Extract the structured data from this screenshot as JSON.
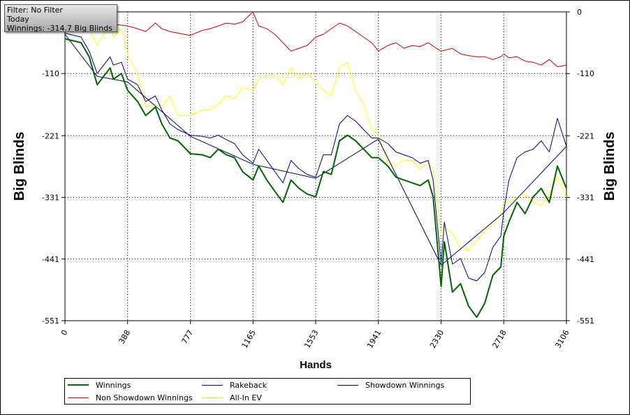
{
  "filter_box": {
    "filter": "Filter: No Filter",
    "period": "Today",
    "winnings": "Winnings: -314.7 Big Blinds"
  },
  "chart_data": {
    "type": "line",
    "xlabel": "Hands",
    "ylabel": "Big Blinds",
    "ylabel_right": "Big Blinds",
    "xlim": [
      0,
      3106
    ],
    "ylim": [
      -551,
      0
    ],
    "x_ticks": [
      "0",
      "388",
      "777",
      "1165",
      "1553",
      "1941",
      "2330",
      "2718",
      "3106"
    ],
    "y_ticks": [
      "0",
      "-110",
      "-221",
      "-331",
      "-441",
      "-551"
    ],
    "grid": true,
    "legend_position": "bottom",
    "series": [
      {
        "name": "Winnings",
        "color": "#006400",
        "width": 2,
        "x": [
          0,
          100,
          150,
          200,
          280,
          300,
          350,
          388,
          450,
          500,
          560,
          600,
          650,
          700,
          777,
          850,
          900,
          950,
          1000,
          1050,
          1100,
          1165,
          1200,
          1250,
          1300,
          1350,
          1400,
          1450,
          1500,
          1553,
          1600,
          1650,
          1700,
          1750,
          1800,
          1850,
          1900,
          1941,
          2000,
          2050,
          2100,
          2150,
          2200,
          2250,
          2280,
          2330,
          2350,
          2400,
          2450,
          2500,
          2550,
          2600,
          2650,
          2700,
          2718,
          2750,
          2800,
          2850,
          2900,
          2950,
          3000,
          3050,
          3106
        ],
        "y": [
          -48,
          -55,
          -80,
          -130,
          -100,
          -120,
          -110,
          -140,
          -160,
          -185,
          -170,
          -200,
          -225,
          -230,
          -253,
          -255,
          -260,
          -245,
          -255,
          -260,
          -285,
          -300,
          -275,
          -300,
          -320,
          -340,
          -300,
          -315,
          -325,
          -330,
          -285,
          -290,
          -230,
          -220,
          -230,
          -245,
          -260,
          -260,
          -275,
          -295,
          -300,
          -305,
          -310,
          -300,
          -330,
          -490,
          -410,
          -500,
          -485,
          -525,
          -545,
          -520,
          -470,
          -455,
          -400,
          -375,
          -340,
          -360,
          -330,
          -315,
          -340,
          -275,
          -315
        ]
      },
      {
        "name": "Rakeback",
        "color": "#00008b",
        "width": 1,
        "x": [
          0,
          100,
          150,
          200,
          280,
          300,
          350,
          388,
          450,
          500,
          560,
          600,
          650,
          700,
          777,
          850,
          900,
          950,
          1000,
          1050,
          1100,
          1165,
          1200,
          1250,
          1300,
          1350,
          1400,
          1450,
          1500,
          1553,
          1600,
          1650,
          1700,
          1750,
          1800,
          1850,
          1900,
          1941,
          2000,
          2050,
          2100,
          2150,
          2200,
          2250,
          2280,
          2330,
          2350,
          2400,
          2450,
          2500,
          2550,
          2600,
          2650,
          2700,
          2718,
          2750,
          2800,
          2850,
          2900,
          2950,
          3000,
          3050,
          3106
        ],
        "y": [
          -38,
          -45,
          -70,
          -110,
          -80,
          -95,
          -90,
          -120,
          -130,
          -160,
          -150,
          -175,
          -200,
          -210,
          -220,
          -222,
          -225,
          -220,
          -228,
          -235,
          -255,
          -270,
          -245,
          -265,
          -285,
          -305,
          -265,
          -280,
          -290,
          -295,
          -255,
          -255,
          -200,
          -185,
          -195,
          -210,
          -225,
          -225,
          -235,
          -250,
          -255,
          -260,
          -270,
          -265,
          -300,
          -450,
          -375,
          -450,
          -440,
          -475,
          -480,
          -465,
          -420,
          -400,
          -355,
          -300,
          -260,
          -250,
          -245,
          -230,
          -250,
          -190,
          -240
        ]
      },
      {
        "name": "Showdown Winnings",
        "color": "#000060",
        "width": 1,
        "x": [
          0,
          200,
          388,
          777,
          1165,
          1553,
          1941,
          2330,
          2718,
          3106
        ],
        "y": [
          -40,
          -115,
          -125,
          -222,
          -272,
          -297,
          -227,
          -452,
          -358,
          -240
        ]
      },
      {
        "name": "Non Showdown Winnings",
        "color": "#cc0000",
        "width": 1,
        "x": [
          0,
          100,
          200,
          300,
          388,
          450,
          500,
          560,
          600,
          650,
          700,
          777,
          850,
          900,
          950,
          1000,
          1050,
          1100,
          1165,
          1200,
          1250,
          1300,
          1350,
          1400,
          1450,
          1500,
          1553,
          1600,
          1650,
          1700,
          1750,
          1800,
          1850,
          1900,
          1941,
          2000,
          2050,
          2100,
          2150,
          2200,
          2250,
          2300,
          2330,
          2400,
          2450,
          2500,
          2550,
          2600,
          2650,
          2700,
          2718,
          2750,
          2800,
          2850,
          2900,
          2950,
          3000,
          3050,
          3106
        ],
        "y": [
          -12,
          -10,
          -18,
          -22,
          -25,
          -30,
          -35,
          -20,
          -30,
          -35,
          -38,
          -42,
          -33,
          -30,
          -25,
          -20,
          -22,
          -18,
          0,
          -25,
          -30,
          -40,
          -55,
          -70,
          -65,
          -60,
          -45,
          -40,
          -30,
          -20,
          -25,
          -35,
          -45,
          -55,
          -70,
          -60,
          -55,
          -65,
          -60,
          -62,
          -55,
          -65,
          -70,
          -65,
          -75,
          -78,
          -80,
          -80,
          -85,
          -80,
          -75,
          -82,
          -80,
          -88,
          -90,
          -95,
          -85,
          -98,
          -95
        ]
      },
      {
        "name": "All-In EV",
        "color": "#ffff00",
        "width": 1,
        "x": [
          0,
          100,
          150,
          200,
          280,
          300,
          350,
          388,
          450,
          500,
          560,
          600,
          650,
          700,
          777,
          850,
          900,
          950,
          1000,
          1050,
          1100,
          1165,
          1200,
          1250,
          1300,
          1350,
          1400,
          1450,
          1500,
          1553,
          1600,
          1650,
          1700,
          1750,
          1800,
          1850,
          1900,
          1941,
          2000,
          2050,
          2100,
          2150,
          2200,
          2250,
          2280,
          2330,
          2350,
          2400,
          2450,
          2500,
          2550,
          2600,
          2650,
          2700,
          2718,
          2750,
          2800,
          2850,
          2900,
          2950,
          3000,
          3050,
          3106
        ],
        "y": [
          -20,
          -15,
          -30,
          -60,
          -20,
          -45,
          -30,
          -75,
          -110,
          -170,
          -165,
          -170,
          -150,
          -185,
          -185,
          -175,
          -175,
          -165,
          -150,
          -155,
          -135,
          -140,
          -120,
          -115,
          -110,
          -130,
          -100,
          -120,
          -110,
          -125,
          -140,
          -150,
          -100,
          -90,
          -140,
          -165,
          -210,
          -220,
          -270,
          -275,
          -265,
          -265,
          -280,
          -270,
          -280,
          -395,
          -385,
          -395,
          -420,
          -425,
          -410,
          -390,
          -380,
          -360,
          -340,
          -340,
          -330,
          -325,
          -340,
          -345,
          -325,
          -295,
          -330
        ]
      }
    ]
  },
  "legend": {
    "items": [
      {
        "label": "Winnings",
        "color": "#006400"
      },
      {
        "label": "Rakeback",
        "color": "#00008b"
      },
      {
        "label": "Showdown Winnings",
        "color": "#000060"
      },
      {
        "label": "Non Showdown Winnings",
        "color": "#cc0000"
      },
      {
        "label": "All-In EV",
        "color": "#ffff00"
      }
    ]
  }
}
